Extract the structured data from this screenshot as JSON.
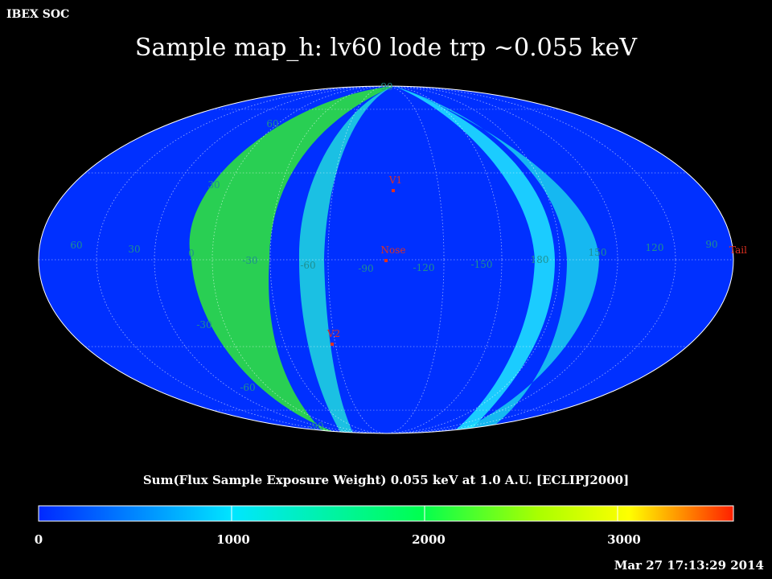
{
  "header": {
    "org": "IBEX SOC",
    "timestamp": "Mar 27 17:13:29 2014"
  },
  "chart_data": {
    "type": "heatmap",
    "projection": "Mollweide (all-sky)",
    "title": "Sample map_h: lv60 lode trp ~0.055 keV",
    "colorbar_label": "Sum(Flux Sample Exposure Weight)  0.055 keV at 1.0 A.U. [ECLIPJ2000]",
    "colorbar_range": [
      0,
      3600
    ],
    "colorbar_ticks": [
      0,
      1000,
      2000,
      3000
    ],
    "colorbar_tick_labels": [
      "0",
      "1000",
      "2000",
      "3000"
    ],
    "colormap": [
      "#0028ff",
      "#00e6ff",
      "#00ff50",
      "#aaff00",
      "#ffff00",
      "#ff2000"
    ],
    "grid": true,
    "longitude_labels": [
      "60",
      "30",
      "0",
      "-30",
      "-60",
      "-90",
      "-120",
      "-150",
      "180",
      "150",
      "120",
      "90"
    ],
    "latitude_labels": [
      "90",
      "60",
      "30",
      "-30",
      "-60",
      "-90"
    ],
    "markers": [
      {
        "label": "V1",
        "lon": -95,
        "lat": 35
      },
      {
        "label": "Nose",
        "lon": -105,
        "lat": 5
      },
      {
        "label": "V2",
        "lon": -70,
        "lat": -32
      },
      {
        "label": "Tail",
        "lon": 75,
        "lat": -5
      }
    ],
    "bands": [
      {
        "region": "outer background",
        "value": 250
      },
      {
        "region": "left bright band (lon ~0 to -60)",
        "value": 1900
      },
      {
        "region": "right band (lon ~150 to 180)",
        "value": 1200
      },
      {
        "region": "center region (lon -90 to -150)",
        "value": 200
      }
    ]
  },
  "colors": {
    "background": "#000000",
    "low": "#0028ff",
    "grid_label": "#1f8f8f",
    "marker": "#e03020"
  }
}
